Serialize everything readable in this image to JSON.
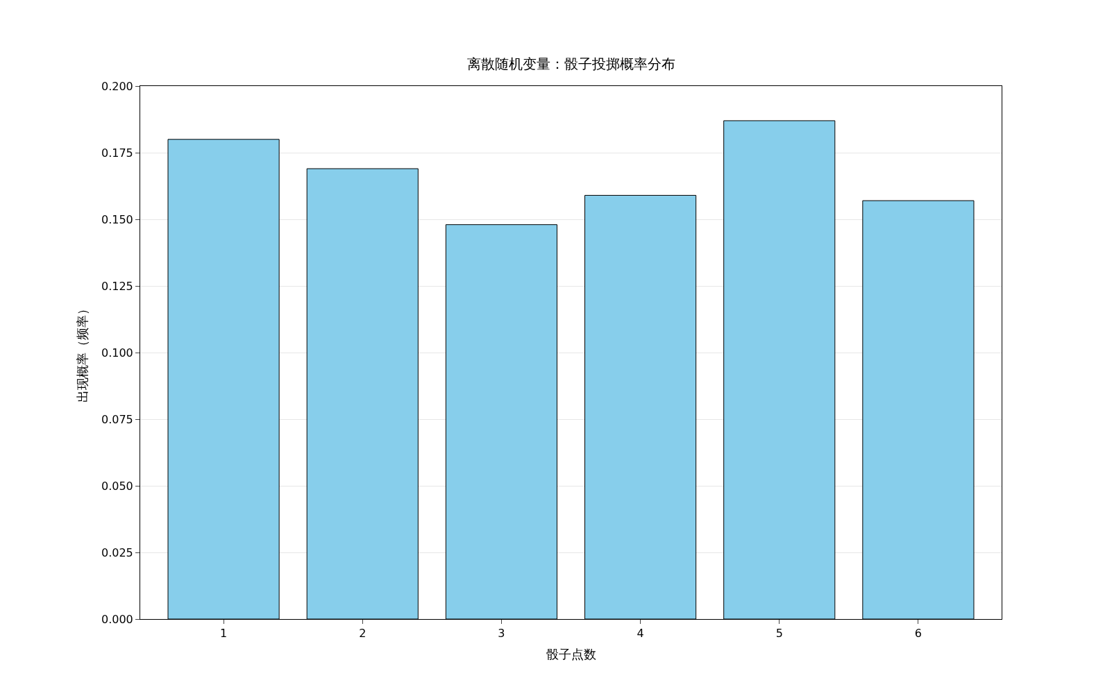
{
  "chart_data": {
    "type": "bar",
    "title": "离散随机变量：骰子投掷概率分布",
    "xlabel": "骰子点数",
    "ylabel": "出现概率（频率）",
    "categories": [
      "1",
      "2",
      "3",
      "4",
      "5",
      "6"
    ],
    "values": [
      0.18,
      0.169,
      0.148,
      0.159,
      0.187,
      0.157
    ],
    "color": "#87ceeb",
    "ylim": [
      0,
      0.2
    ],
    "yticks": [
      {
        "value": 0,
        "label": "0.000"
      },
      {
        "value": 0.025,
        "label": "0.025"
      },
      {
        "value": 0.05,
        "label": "0.050"
      },
      {
        "value": 0.075,
        "label": "0.075"
      },
      {
        "value": 0.1,
        "label": "0.100"
      },
      {
        "value": 0.125,
        "label": "0.125"
      },
      {
        "value": 0.15,
        "label": "0.150"
      },
      {
        "value": 0.175,
        "label": "0.175"
      },
      {
        "value": 0.2,
        "label": "0.200"
      }
    ],
    "grid": "y"
  }
}
